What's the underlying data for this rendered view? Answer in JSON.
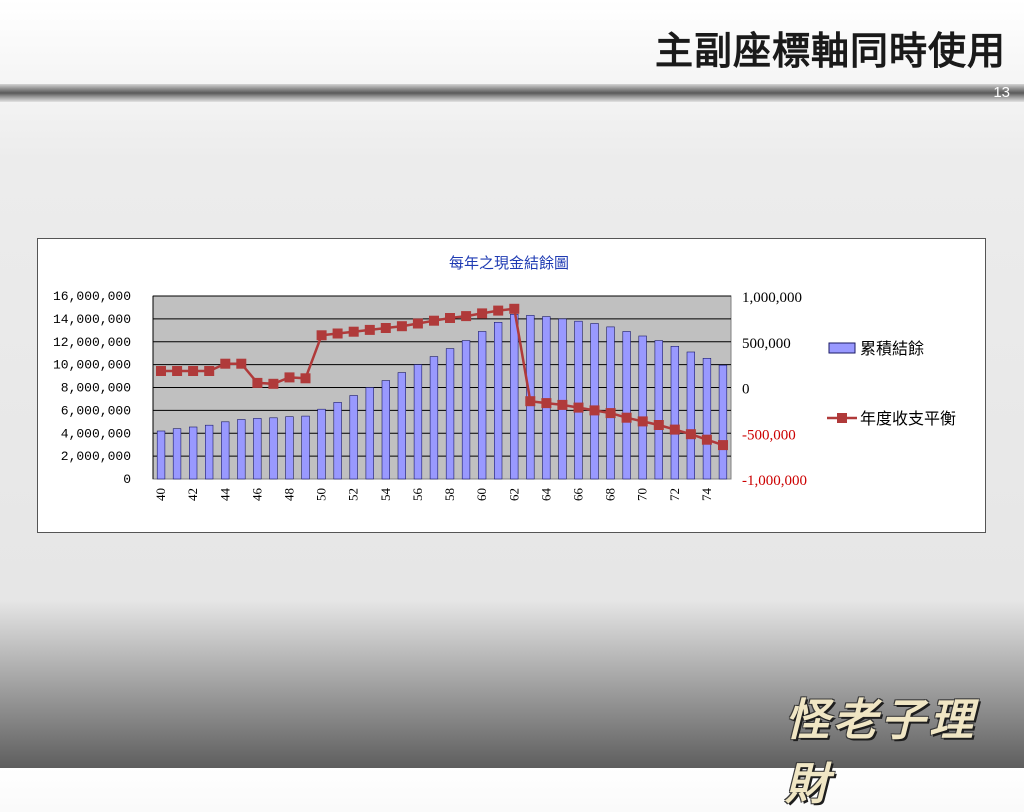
{
  "slide": {
    "title": "主副座標軸同時使用",
    "page_number": "13",
    "brand": "怪老子理財"
  },
  "colors": {
    "bar_fill": "#9999ff",
    "bar_stroke": "#1a1a66",
    "line": "#b03a3a",
    "plot_bg": "#c0c0c0",
    "chart_title": "#1f3bb3",
    "secondary_axis_negative": "#cc0000"
  },
  "chart_data": {
    "type": "bar",
    "title": "每年之現金結餘圖",
    "grid": true,
    "legend_position": "right",
    "categories": [
      40,
      41,
      42,
      43,
      44,
      45,
      46,
      47,
      48,
      49,
      50,
      51,
      52,
      53,
      54,
      55,
      56,
      57,
      58,
      59,
      60,
      61,
      62,
      63,
      64,
      65,
      66,
      67,
      68,
      69,
      70,
      71,
      72,
      73,
      74,
      75
    ],
    "x_tick_labels": [
      "40",
      "42",
      "44",
      "46",
      "48",
      "50",
      "52",
      "54",
      "56",
      "58",
      "60",
      "62",
      "64",
      "66",
      "68",
      "70",
      "72",
      "74"
    ],
    "y_left": {
      "range": [
        0,
        16000000
      ],
      "ticks": [
        0,
        2000000,
        4000000,
        6000000,
        8000000,
        10000000,
        12000000,
        14000000,
        16000000
      ],
      "tick_labels": [
        "0",
        "2,000,000",
        "4,000,000",
        "6,000,000",
        "8,000,000",
        "10,000,000",
        "12,000,000",
        "14,000,000",
        "16,000,000"
      ]
    },
    "y_right": {
      "range": [
        -1000000,
        1000000
      ],
      "ticks": [
        -1000000,
        -500000,
        0,
        500000,
        1000000
      ],
      "tick_labels": [
        "-1,000,000",
        "-500,000",
        "0",
        "500,000",
        "1,000,000"
      ]
    },
    "series": [
      {
        "name": "累積結餘",
        "type": "bar",
        "axis": "left",
        "values": [
          4200000,
          4400000,
          4550000,
          4700000,
          5000000,
          5200000,
          5300000,
          5350000,
          5450000,
          5500000,
          6100000,
          6700000,
          7300000,
          8000000,
          8600000,
          9300000,
          10000000,
          10700000,
          11400000,
          12100000,
          12900000,
          13700000,
          14400000,
          14300000,
          14200000,
          14000000,
          13800000,
          13600000,
          13300000,
          12900000,
          12500000,
          12100000,
          11600000,
          11100000,
          10550000,
          9950000
        ]
      },
      {
        "name": "年度收支平衡",
        "type": "line",
        "axis": "right",
        "values": [
          180000,
          180000,
          180000,
          180000,
          260000,
          260000,
          50000,
          40000,
          110000,
          100000,
          570000,
          590000,
          610000,
          630000,
          650000,
          670000,
          700000,
          730000,
          760000,
          780000,
          810000,
          840000,
          860000,
          -150000,
          -170000,
          -190000,
          -220000,
          -250000,
          -280000,
          -330000,
          -370000,
          -410000,
          -460000,
          -510000,
          -570000,
          -630000
        ]
      }
    ]
  }
}
